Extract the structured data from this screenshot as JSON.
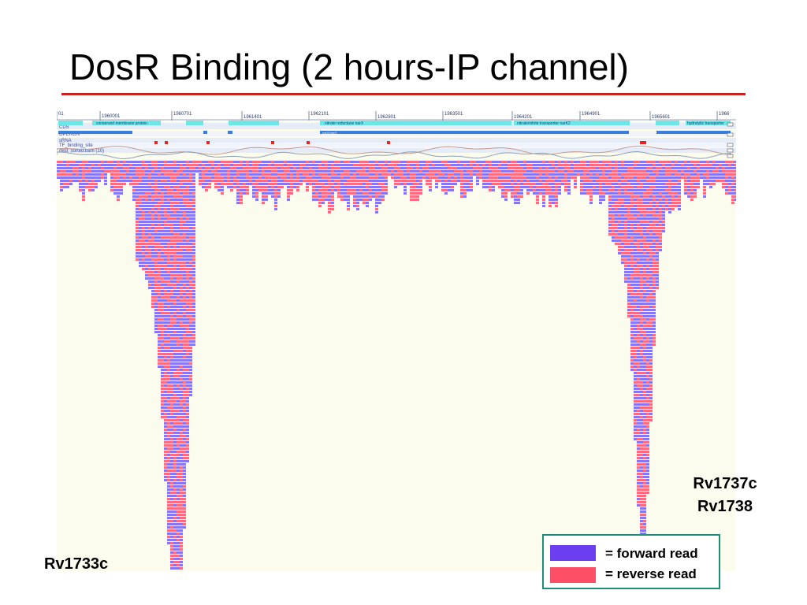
{
  "slide": {
    "title": "DosR Binding (2 hours-IP channel)"
  },
  "genome_browser": {
    "positions": [
      "01",
      "1960001",
      "1960701",
      "1961401",
      "1962101",
      "1962801",
      "1963501",
      "1964201",
      "1964901",
      "1965601",
      "1966"
    ],
    "tracks": [
      "CDS",
      "OPERON",
      "sRNA",
      "TF_binding_site",
      "/test_sorted.bam (10)"
    ],
    "features": [
      "conserved membrane protein",
      "nitrate reductase narX",
      "nitrate/nitrite transporter narK2",
      "hydrolytic transporter",
      "narX/narG"
    ],
    "colors": {
      "forward": "#8577f4",
      "reverse": "#ff6b7e",
      "background": "#fcfcee",
      "cds": "#6ee6e6",
      "operon": "#3a7fdc",
      "tf_site": "#ee2222"
    }
  },
  "annotations": {
    "left_gene": "Rv1733c",
    "right_genes": [
      "Rv1737c",
      "Rv1738"
    ]
  },
  "legend": {
    "forward_label": "= forward read",
    "reverse_label": "= reverse read",
    "forward_color": "#6b3ff0",
    "reverse_color": "#ff4f66"
  }
}
